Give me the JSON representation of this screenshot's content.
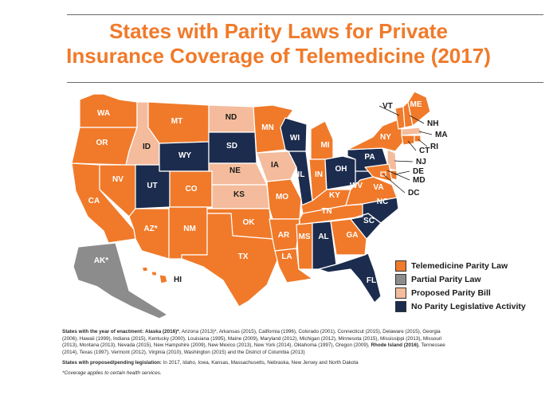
{
  "title_line1": "States with Parity Laws for Private",
  "title_line2": "Insurance Coverage of Telemedicine (2017)",
  "colors": {
    "parity": "#f07a2a",
    "partial": "#8c8c8c",
    "proposed": "#f4bc9c",
    "none": "#1c2c4e",
    "title": "#f07a2a"
  },
  "legend": [
    {
      "label": "Telemedicine Parity Law",
      "status": "parity"
    },
    {
      "label": "Partial Parity Law",
      "status": "partial"
    },
    {
      "label": "Proposed Parity Bill",
      "status": "proposed"
    },
    {
      "label": "No Parity Legislative Activity",
      "status": "none"
    }
  ],
  "states": [
    {
      "abbr": "WA",
      "status": "parity"
    },
    {
      "abbr": "OR",
      "status": "parity"
    },
    {
      "abbr": "CA",
      "status": "parity"
    },
    {
      "abbr": "NV",
      "status": "parity"
    },
    {
      "abbr": "ID",
      "status": "proposed"
    },
    {
      "abbr": "MT",
      "status": "parity"
    },
    {
      "abbr": "WY",
      "status": "none"
    },
    {
      "abbr": "UT",
      "status": "none"
    },
    {
      "abbr": "AZ*",
      "status": "parity"
    },
    {
      "abbr": "CO",
      "status": "parity"
    },
    {
      "abbr": "NM",
      "status": "parity"
    },
    {
      "abbr": "ND",
      "status": "proposed"
    },
    {
      "abbr": "SD",
      "status": "none"
    },
    {
      "abbr": "NE",
      "status": "proposed"
    },
    {
      "abbr": "KS",
      "status": "proposed"
    },
    {
      "abbr": "OK",
      "status": "parity"
    },
    {
      "abbr": "TX",
      "status": "parity"
    },
    {
      "abbr": "MN",
      "status": "parity"
    },
    {
      "abbr": "IA",
      "status": "proposed"
    },
    {
      "abbr": "MO",
      "status": "parity"
    },
    {
      "abbr": "AR",
      "status": "parity"
    },
    {
      "abbr": "LA",
      "status": "parity"
    },
    {
      "abbr": "WI",
      "status": "none"
    },
    {
      "abbr": "IL",
      "status": "none"
    },
    {
      "abbr": "MI",
      "status": "parity"
    },
    {
      "abbr": "IN",
      "status": "parity"
    },
    {
      "abbr": "OH",
      "status": "none"
    },
    {
      "abbr": "KY",
      "status": "parity"
    },
    {
      "abbr": "TN",
      "status": "parity"
    },
    {
      "abbr": "MS",
      "status": "parity"
    },
    {
      "abbr": "AL",
      "status": "none"
    },
    {
      "abbr": "GA",
      "status": "parity"
    },
    {
      "abbr": "FL",
      "status": "none"
    },
    {
      "abbr": "SC",
      "status": "none"
    },
    {
      "abbr": "NC",
      "status": "none"
    },
    {
      "abbr": "VA",
      "status": "parity"
    },
    {
      "abbr": "WV",
      "status": "none"
    },
    {
      "abbr": "PA",
      "status": "none"
    },
    {
      "abbr": "NY",
      "status": "parity"
    },
    {
      "abbr": "VT",
      "status": "parity"
    },
    {
      "abbr": "NH",
      "status": "parity"
    },
    {
      "abbr": "ME",
      "status": "parity"
    },
    {
      "abbr": "MA",
      "status": "proposed"
    },
    {
      "abbr": "RI",
      "status": "parity"
    },
    {
      "abbr": "CT",
      "status": "parity"
    },
    {
      "abbr": "NJ",
      "status": "proposed"
    },
    {
      "abbr": "DE",
      "status": "parity"
    },
    {
      "abbr": "MD",
      "status": "parity"
    },
    {
      "abbr": "DC",
      "status": "parity"
    },
    {
      "abbr": "AK*",
      "status": "partial"
    },
    {
      "abbr": "HI",
      "status": "parity"
    }
  ],
  "notes": {
    "enactment_heading": "States with the year of enactment:",
    "enactment_lead": "Alaska (2016)*",
    "enactment_text": ", Arizona (2013)*, Arkansas (2015), California (1996), Colorado (2001), Connecticut (2015), Delaware (2015), Georgia (2006), Hawaii (1999), Indiana (2015), Kentucky (2000), Louisiana (1995), Maine (2009), Maryland (2012), Michigan (2012), Minnesota (2015), Mississippi (2013), Missouri (2013), Montana (2013), Nevada (2015), New Hampshire (2009), New Mexico (2013), New York (2014), Oklahoma (1997), Oregon (2009),",
    "enactment_ri": "Rhode Island (2016)",
    "enactment_tail": ", Tennessee (2014), Texas (1997), Vermont (2012), Virginia (2010), Washington (2015) and the District of Columbia (2013)",
    "proposed_heading": "States with proposed/pending legislation:",
    "proposed_text": " In 2017, Idaho, Iowa, Kansas, Massachusetts, Nebraska, New Jersey and North Dakota",
    "footnote": "*Coverage applies to certain health services."
  }
}
